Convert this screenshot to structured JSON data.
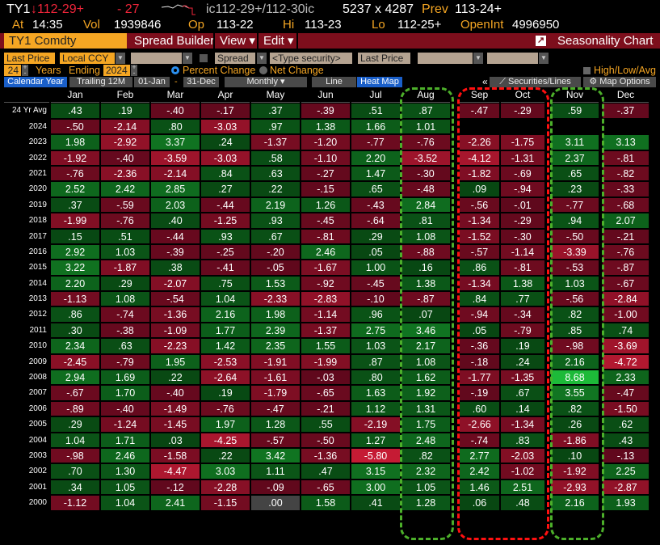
{
  "quote": {
    "ticker": "TY1",
    "last": "↓112-29+",
    "change": "- 27",
    "bidask": "ic112-29+/112-30ic",
    "size": "5237 x 4287",
    "prev_label": "Prev",
    "prev": "113-24+",
    "at_label": "At",
    "time": "14:35",
    "vol_label": "Vol",
    "vol": "1939846",
    "op_label": "Op",
    "op": "113-22",
    "hi_label": "Hi",
    "hi": "113-23",
    "lo_label": "Lo",
    "lo": "112-25+",
    "oi_label": "OpenInt",
    "oi": "4996950"
  },
  "toolbar": {
    "security": "TY1 Comdty",
    "spread_builder": "Spread Builder",
    "view": "View ▾",
    "edit": "Edit ▾",
    "seasonality_chart": "Seasonality Chart"
  },
  "controls": {
    "field": "Last Price",
    "currency": "Local CCY",
    "spread": "Spread",
    "type_security_placeholder": "<Type security>",
    "field2": "Last Price",
    "years": "24",
    "years_label": "Years",
    "ending_label": "Ending",
    "ending_year": "2024",
    "percent_change": "Percent Change",
    "net_change": "Net Change",
    "high_low_avg": "High/Low/Avg",
    "calendar_year": "Calendar Year",
    "trailing": "Trailing 12M",
    "start": "01-Jan",
    "dash": "-",
    "end": "31-Dec",
    "frequency": "Monthly ▾",
    "line": "Line",
    "heat_map": "Heat Map",
    "collapse": "«",
    "securities_lines": "Securities/Lines",
    "map_options": "Map Options"
  },
  "colors": {
    "positive": "#0d6b1c",
    "negative": "#7a0f22",
    "neutral": "#444444",
    "highlight_green": "#4caf2a",
    "highlight_red": "#ff1010"
  },
  "months": [
    "Jan",
    "Feb",
    "Mar",
    "Apr",
    "May",
    "Jun",
    "Jul",
    "Aug",
    "Sep",
    "Oct",
    "Nov",
    "Dec"
  ],
  "rows": [
    {
      "label": "24 Yr Avg",
      "values": [
        ".43",
        ".19",
        "-.40",
        "-.17",
        ".37",
        "-.39",
        ".51",
        ".87",
        "-.47",
        "-.29",
        ".59",
        "-.37"
      ]
    },
    {
      "label": "2024",
      "values": [
        "-.50",
        "-2.14",
        ".80",
        "-3.03",
        ".97",
        "1.38",
        "1.66",
        "1.01",
        null,
        null,
        null,
        null
      ]
    },
    {
      "label": "2023",
      "values": [
        "1.98",
        "-2.92",
        "3.37",
        ".24",
        "-1.37",
        "-1.20",
        "-.77",
        "-.76",
        "-2.26",
        "-1.75",
        "3.11",
        "3.13"
      ]
    },
    {
      "label": "2022",
      "values": [
        "-1.92",
        "-.40",
        "-3.59",
        "-3.03",
        ".58",
        "-1.10",
        "2.20",
        "-3.52",
        "-4.12",
        "-1.31",
        "2.37",
        "-.81"
      ]
    },
    {
      "label": "2021",
      "values": [
        "-.76",
        "-2.36",
        "-2.14",
        ".84",
        ".63",
        "-.27",
        "1.47",
        "-.30",
        "-1.82",
        "-.69",
        ".65",
        "-.82"
      ]
    },
    {
      "label": "2020",
      "values": [
        "2.52",
        "2.42",
        "2.85",
        ".27",
        ".22",
        "-.15",
        ".65",
        "-.48",
        ".09",
        "-.94",
        ".23",
        "-.33"
      ]
    },
    {
      "label": "2019",
      "values": [
        ".37",
        "-.59",
        "2.03",
        "-.44",
        "2.19",
        "1.26",
        "-.43",
        "2.84",
        "-.56",
        "-.01",
        "-.77",
        "-.68"
      ]
    },
    {
      "label": "2018",
      "values": [
        "-1.99",
        "-.76",
        ".40",
        "-1.25",
        ".93",
        "-.45",
        "-.64",
        ".81",
        "-1.34",
        "-.29",
        ".94",
        "2.07"
      ]
    },
    {
      "label": "2017",
      "values": [
        ".15",
        ".51",
        "-.44",
        ".93",
        ".67",
        "-.81",
        ".29",
        "1.08",
        "-1.52",
        "-.30",
        "-.50",
        "-.21"
      ]
    },
    {
      "label": "2016",
      "values": [
        "2.92",
        "1.03",
        "-.39",
        "-.25",
        "-.20",
        "2.46",
        ".05",
        "-.88",
        "-.57",
        "-1.14",
        "-3.39",
        "-.76"
      ]
    },
    {
      "label": "2015",
      "values": [
        "3.22",
        "-1.87",
        ".38",
        "-.41",
        "-.05",
        "-1.67",
        "1.00",
        ".16",
        ".86",
        "-.81",
        "-.53",
        "-.87"
      ]
    },
    {
      "label": "2014",
      "values": [
        "2.20",
        ".29",
        "-2.07",
        ".75",
        "1.53",
        "-.92",
        "-.45",
        "1.38",
        "-1.34",
        "1.38",
        "1.03",
        "-.67"
      ]
    },
    {
      "label": "2013",
      "values": [
        "-1.13",
        "1.08",
        "-.54",
        "1.04",
        "-2.33",
        "-2.83",
        "-.10",
        "-.87",
        ".84",
        ".77",
        "-.56",
        "-2.84"
      ]
    },
    {
      "label": "2012",
      "values": [
        ".86",
        "-.74",
        "-1.36",
        "2.16",
        "1.98",
        "-1.14",
        ".96",
        ".07",
        "-.94",
        "-.34",
        ".82",
        "-1.00"
      ]
    },
    {
      "label": "2011",
      "values": [
        ".30",
        "-.38",
        "-1.09",
        "1.77",
        "2.39",
        "-1.37",
        "2.75",
        "3.46",
        ".05",
        "-.79",
        ".85",
        ".74"
      ]
    },
    {
      "label": "2010",
      "values": [
        "2.34",
        ".63",
        "-2.23",
        "1.42",
        "2.35",
        "1.55",
        "1.03",
        "2.17",
        "-.36",
        ".19",
        "-.98",
        "-3.69"
      ]
    },
    {
      "label": "2009",
      "values": [
        "-2.45",
        "-.79",
        "1.95",
        "-2.53",
        "-1.91",
        "-1.99",
        ".87",
        "1.08",
        "-.18",
        ".24",
        "2.16",
        "-4.72"
      ]
    },
    {
      "label": "2008",
      "values": [
        "2.94",
        "1.69",
        ".22",
        "-2.64",
        "-1.61",
        "-.03",
        ".80",
        "1.62",
        "-1.77",
        "-1.35",
        "8.68",
        "2.33"
      ]
    },
    {
      "label": "2007",
      "values": [
        "-.67",
        "1.70",
        "-.40",
        ".19",
        "-1.79",
        "-.65",
        "1.63",
        "1.92",
        "-.19",
        ".67",
        "3.55",
        "-.47"
      ]
    },
    {
      "label": "2006",
      "values": [
        "-.89",
        "-.40",
        "-1.49",
        "-.76",
        "-.47",
        "-.21",
        "1.12",
        "1.31",
        ".60",
        ".14",
        ".82",
        "-1.50"
      ]
    },
    {
      "label": "2005",
      "values": [
        ".29",
        "-1.24",
        "-1.45",
        "1.97",
        "1.28",
        ".55",
        "-2.19",
        "1.75",
        "-2.66",
        "-1.34",
        ".26",
        ".62"
      ]
    },
    {
      "label": "2004",
      "values": [
        "1.04",
        "1.71",
        ".03",
        "-4.25",
        "-.57",
        "-.50",
        "1.27",
        "2.48",
        "-.74",
        ".83",
        "-1.86",
        ".43"
      ]
    },
    {
      "label": "2003",
      "values": [
        "-.98",
        "2.46",
        "-1.58",
        ".22",
        "3.42",
        "-1.36",
        "-5.80",
        ".82",
        "2.77",
        "-2.03",
        ".10",
        "-.13"
      ]
    },
    {
      "label": "2002",
      "values": [
        ".70",
        "1.30",
        "-4.47",
        "3.03",
        "1.11",
        ".47",
        "3.15",
        "2.32",
        "2.42",
        "-1.02",
        "-1.92",
        "2.25"
      ]
    },
    {
      "label": "2001",
      "values": [
        ".34",
        "1.05",
        "-.12",
        "-2.28",
        "-.09",
        "-.65",
        "3.00",
        "1.05",
        "1.46",
        "2.51",
        "-2.93",
        "-2.87"
      ]
    },
    {
      "label": "2000",
      "values": [
        "-1.12",
        "1.04",
        "2.41",
        "-1.15",
        ".00",
        "1.58",
        ".41",
        "1.28",
        ".06",
        ".48",
        "2.16",
        "1.93"
      ]
    }
  ]
}
